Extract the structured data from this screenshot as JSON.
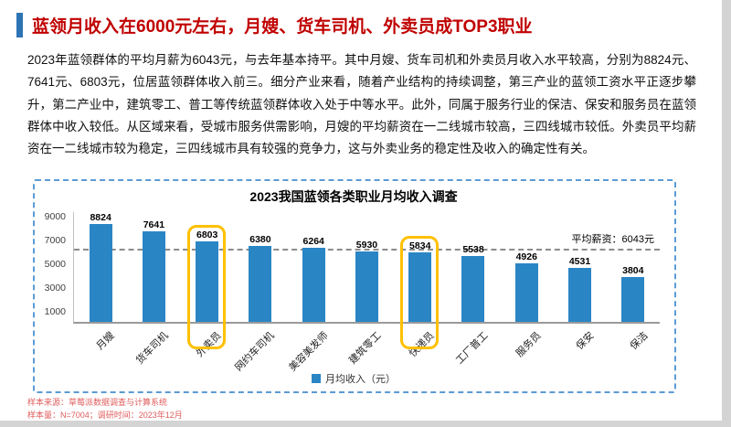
{
  "header": {
    "title": "蓝领月收入在6000元左右，月嫂、货车司机、外卖员成TOP3职业"
  },
  "paragraph": "2023年蓝领群体的平均月薪为6043元，与去年基本持平。其中月嫂、货车司机和外卖员月收入水平较高，分别为8824元、7641元、6803元，位居蓝领群体收入前三。细分产业来看，随着产业结构的持续调整，第三产业的蓝领工资水平正逐步攀升，第二产业中，建筑零工、普工等传统蓝领群体收入处于中等水平。此外，同属于服务行业的保洁、保安和服务员在蓝领群体中收入较低。从区域来看，受城市服务供需影响，月嫂的平均薪资在一二线城市较高，三四线城市较低。外卖员平均薪资在一二线城市较为稳定，三四线城市具有较强的竞争力，这与外卖业务的稳定性及收入的确定性有关。",
  "chart_data": {
    "type": "bar",
    "title": "2023我国蓝领各类职业月均收入调查",
    "categories": [
      "月嫂",
      "货车司机",
      "外卖员",
      "网约车司机",
      "美容美发师",
      "建筑零工",
      "快递员",
      "工厂普工",
      "服务员",
      "保安",
      "保洁"
    ],
    "values": [
      8824,
      7641,
      6803,
      6380,
      6264,
      5930,
      5834,
      5538,
      4926,
      4531,
      3804
    ],
    "average_value": 6043,
    "average_label": "平均薪资：6043元",
    "yticks": [
      1000,
      3000,
      5000,
      7000,
      9000
    ],
    "ylim": [
      0,
      9400
    ],
    "legend": "月均收入（元）",
    "highlight_indexes": [
      2,
      6
    ],
    "bar_color": "#2a85c5",
    "highlight_color": "#ffc000",
    "grid": false,
    "legend_position": "bottom"
  },
  "colors": {
    "title_red": "#c00000",
    "accent_blue": "#2e74b5",
    "panel_border": "#5b9bd5",
    "avg_line": "#8c8c8c",
    "footnote": "#e05c5c"
  },
  "footer": {
    "line1": "样本来源：草莓派数据调查与计算系统",
    "line2": "样本量：N=7004；调研时间：2023年12月"
  }
}
